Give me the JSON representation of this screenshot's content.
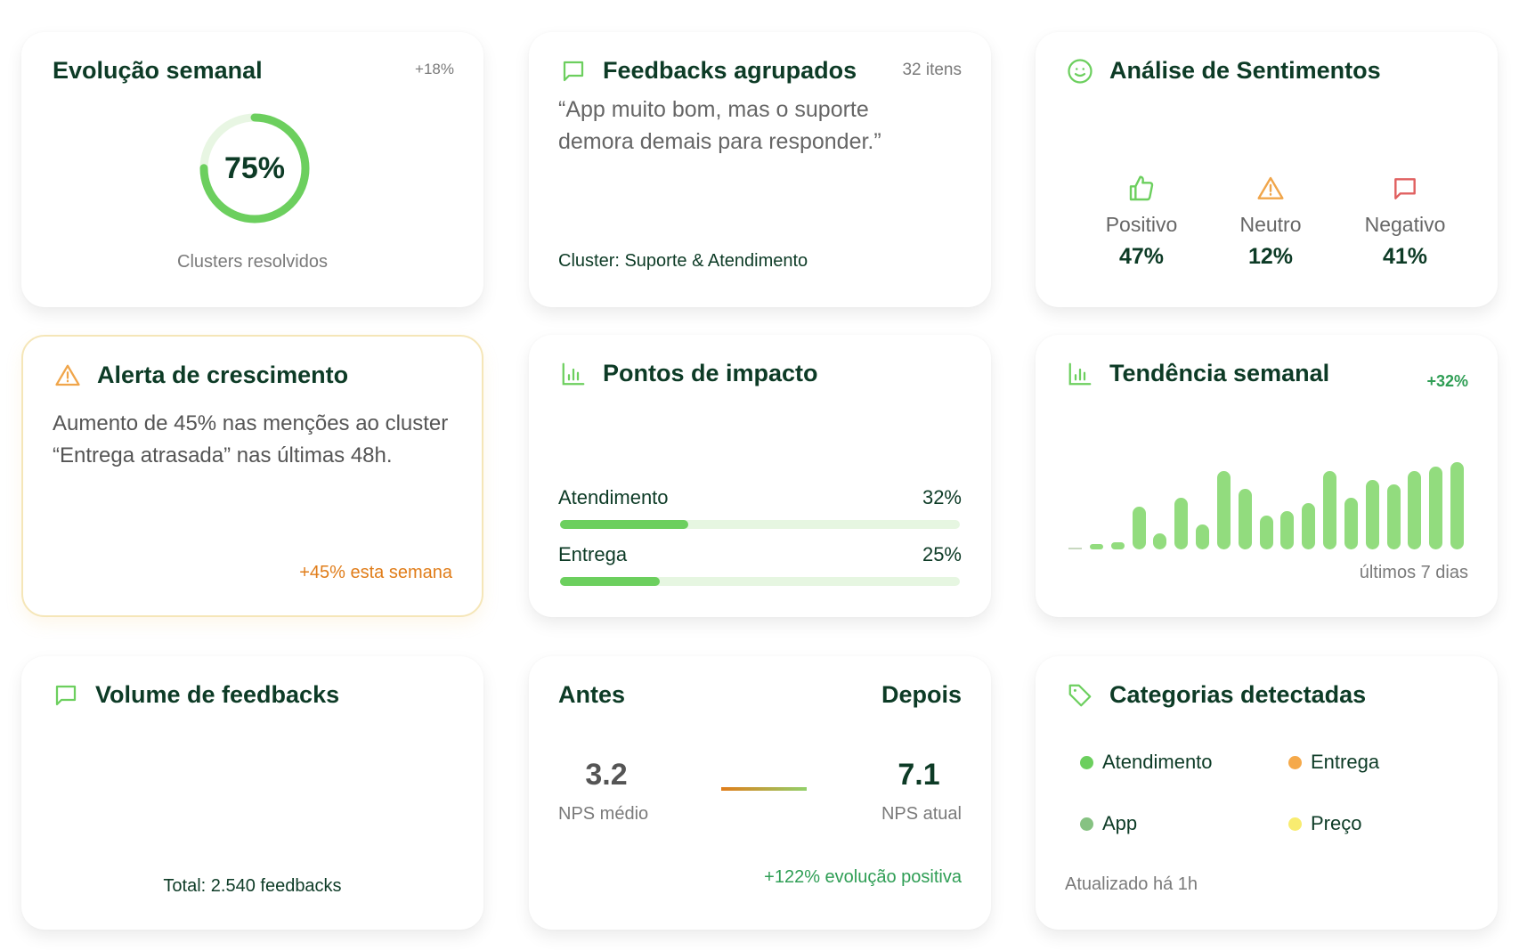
{
  "evolucao": {
    "title": "Evolução semanal",
    "delta": "+18%",
    "progress_label": "75%",
    "progress": 75,
    "caption": "Clusters resolvidos"
  },
  "feedbacks": {
    "title": "Feedbacks agrupados",
    "count": "32 itens",
    "quote": "“App muito bom, mas o suporte demora demais para responder.”",
    "cluster": "Cluster: Suporte & Atendimento",
    "icon": "chat-bubble-icon"
  },
  "sentimentos": {
    "title": "Análise de Sentimentos",
    "icon": "smile-icon",
    "items": [
      {
        "label": "Positivo",
        "value": "47%",
        "icon": "thumbs-up-icon",
        "color": "#6ccf5e"
      },
      {
        "label": "Neutro",
        "value": "12%",
        "icon": "warning-icon",
        "color": "#f0a54a"
      },
      {
        "label": "Negativo",
        "value": "41%",
        "icon": "chat-bubble-icon",
        "color": "#e06060"
      }
    ]
  },
  "alerta": {
    "title": "Alerta de crescimento",
    "body": "Aumento de 45% nas menções ao cluster “Entrega atrasada” nas últimas 48h.",
    "footer": "+45% esta semana",
    "icon": "warning-icon"
  },
  "impacto": {
    "title": "Pontos de impacto",
    "icon": "bar-chart-icon",
    "items": [
      {
        "label": "Atendimento",
        "value": "32%",
        "fill": 32
      },
      {
        "label": "Entrega",
        "value": "25%",
        "fill": 25
      }
    ]
  },
  "tendencia": {
    "title": "Tendência semanal",
    "delta": "+32%",
    "caption": "últimos 7 dias",
    "icon": "bar-chart-icon",
    "bars": [
      0,
      3,
      8,
      48,
      18,
      58,
      28,
      88,
      68,
      38,
      43,
      52,
      88,
      58,
      78,
      73,
      88,
      93,
      98
    ]
  },
  "volume": {
    "title": "Volume de feedbacks",
    "total": "Total: 2.540 feedbacks",
    "icon": "chat-bubble-icon"
  },
  "nps": {
    "before_title": "Antes",
    "after_title": "Depois",
    "before_value": "3.2",
    "before_label": "NPS médio",
    "after_value": "7.1",
    "after_label": "NPS atual",
    "evolution": "+122% evolução positiva"
  },
  "categorias": {
    "title": "Categorias detectadas",
    "icon": "tag-icon",
    "items": [
      {
        "label": "Atendimento",
        "color": "#6ccf5e"
      },
      {
        "label": "Entrega",
        "color": "#f5a94a"
      },
      {
        "label": "App",
        "color": "#86c282"
      },
      {
        "label": "Preço",
        "color": "#f8ec70"
      }
    ],
    "updated": "Atualizado há 1h"
  }
}
